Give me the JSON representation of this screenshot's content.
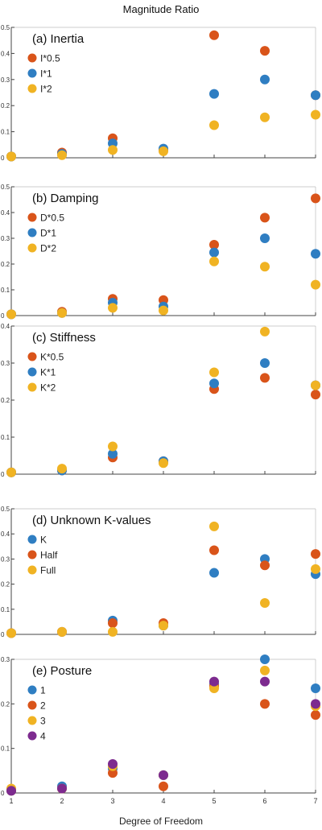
{
  "figure": {
    "title": "Magnitude Ratio",
    "xlabel": "Degree of Freedom"
  },
  "colors": {
    "blue": "#2f7ec2",
    "orange": "#d9541a",
    "yellow": "#f0b323",
    "purple": "#7d2b8f",
    "axis": "#444444"
  },
  "chart_data": [
    {
      "type": "scatter",
      "title": "(a) Inertia",
      "xlabel": "",
      "ylabel": "",
      "x": [
        1,
        2,
        3,
        4,
        5,
        6,
        7
      ],
      "xlim": [
        1,
        7
      ],
      "ylim": [
        0,
        0.5
      ],
      "yticks": [
        0,
        0.1,
        0.2,
        0.3,
        0.4,
        0.5
      ],
      "yticklabels": [
        "0",
        "0.1",
        "0.2",
        "0.3",
        "0.4",
        "0.5"
      ],
      "legend_position": "top-left",
      "series": [
        {
          "name": "I*0.5",
          "color": "#d9541a",
          "values": [
            0.005,
            0.02,
            0.075,
            0.03,
            0.47,
            0.41,
            0.24
          ]
        },
        {
          "name": "I*1",
          "color": "#2f7ec2",
          "values": [
            0.005,
            0.015,
            0.055,
            0.035,
            0.245,
            0.3,
            0.24
          ]
        },
        {
          "name": "I*2",
          "color": "#f0b323",
          "values": [
            0.005,
            0.01,
            0.03,
            0.025,
            0.125,
            0.155,
            0.165
          ]
        }
      ]
    },
    {
      "type": "scatter",
      "title": "(b) Damping",
      "xlabel": "",
      "ylabel": "",
      "x": [
        1,
        2,
        3,
        4,
        5,
        6,
        7
      ],
      "xlim": [
        1,
        7
      ],
      "ylim": [
        0,
        0.5
      ],
      "yticks": [
        0,
        0.1,
        0.2,
        0.3,
        0.4,
        0.5
      ],
      "yticklabels": [
        "0",
        "0.1",
        "0.2",
        "0.3",
        "0.4",
        "0.5"
      ],
      "legend_position": "top-left",
      "series": [
        {
          "name": "D*0.5",
          "color": "#d9541a",
          "values": [
            0.005,
            0.015,
            0.065,
            0.06,
            0.275,
            0.38,
            0.455
          ]
        },
        {
          "name": "D*1",
          "color": "#2f7ec2",
          "values": [
            0.005,
            0.01,
            0.05,
            0.035,
            0.245,
            0.3,
            0.24
          ]
        },
        {
          "name": "D*2",
          "color": "#f0b323",
          "values": [
            0.005,
            0.01,
            0.03,
            0.02,
            0.21,
            0.19,
            0.12
          ]
        }
      ]
    },
    {
      "type": "scatter",
      "title": "(c) Stiffness",
      "xlabel": "",
      "ylabel": "",
      "x": [
        1,
        2,
        3,
        4,
        5,
        6,
        7
      ],
      "xlim": [
        1,
        7
      ],
      "ylim": [
        0,
        0.4
      ],
      "yticks": [
        0,
        0.1,
        0.2,
        0.3,
        0.4
      ],
      "yticklabels": [
        "0",
        "0.1",
        "0.2",
        "0.3",
        "0.4"
      ],
      "legend_position": "top-left",
      "series": [
        {
          "name": "K*0.5",
          "color": "#d9541a",
          "values": [
            0.005,
            0.01,
            0.045,
            0.035,
            0.23,
            0.26,
            0.215
          ]
        },
        {
          "name": "K*1",
          "color": "#2f7ec2",
          "values": [
            0.005,
            0.01,
            0.055,
            0.035,
            0.245,
            0.3,
            0.24
          ]
        },
        {
          "name": "K*2",
          "color": "#f0b323",
          "values": [
            0.005,
            0.015,
            0.075,
            0.03,
            0.275,
            0.385,
            0.24
          ]
        }
      ]
    },
    {
      "type": "scatter",
      "title": "(d) Unknown K-values",
      "xlabel": "",
      "ylabel": "",
      "x": [
        1,
        2,
        3,
        4,
        5,
        6,
        7
      ],
      "xlim": [
        1,
        7
      ],
      "ylim": [
        0,
        0.5
      ],
      "yticks": [
        0,
        0.1,
        0.2,
        0.3,
        0.4,
        0.5
      ],
      "yticklabels": [
        "0",
        "0.1",
        "0.2",
        "0.3",
        "0.4",
        "0.5"
      ],
      "legend_position": "top-left",
      "series": [
        {
          "name": "K",
          "color": "#2f7ec2",
          "values": [
            0.005,
            0.01,
            0.055,
            0.035,
            0.245,
            0.3,
            0.24
          ]
        },
        {
          "name": "Half",
          "color": "#d9541a",
          "values": [
            0.005,
            0.01,
            0.045,
            0.045,
            0.335,
            0.275,
            0.32
          ]
        },
        {
          "name": "Full",
          "color": "#f0b323",
          "values": [
            0.005,
            0.01,
            0.01,
            0.035,
            0.43,
            0.125,
            0.26
          ]
        }
      ]
    },
    {
      "type": "scatter",
      "title": "(e) Posture",
      "xlabel": "Degree of Freedom",
      "ylabel": "",
      "x": [
        1,
        2,
        3,
        4,
        5,
        6,
        7
      ],
      "xlim": [
        1,
        7
      ],
      "ylim": [
        0,
        0.3
      ],
      "yticks": [
        0,
        0.1,
        0.2,
        0.3
      ],
      "yticklabels": [
        "0",
        "0.1",
        "0.2",
        "0.3"
      ],
      "xticklabels": [
        "1",
        "2",
        "3",
        "4",
        "5",
        "6",
        "7"
      ],
      "legend_position": "top-left",
      "series": [
        {
          "name": "1",
          "color": "#2f7ec2",
          "values": [
            0.005,
            0.015,
            0.055,
            0.04,
            0.245,
            0.3,
            0.235
          ]
        },
        {
          "name": "2",
          "color": "#d9541a",
          "values": [
            0.005,
            0.01,
            0.045,
            0.015,
            0.24,
            0.2,
            0.175
          ]
        },
        {
          "name": "3",
          "color": "#f0b323",
          "values": [
            0.01,
            0.01,
            0.06,
            0.04,
            0.235,
            0.275,
            0.195
          ]
        },
        {
          "name": "4",
          "color": "#7d2b8f",
          "values": [
            0.005,
            0.01,
            0.065,
            0.04,
            0.25,
            0.25,
            0.2
          ]
        }
      ]
    }
  ]
}
